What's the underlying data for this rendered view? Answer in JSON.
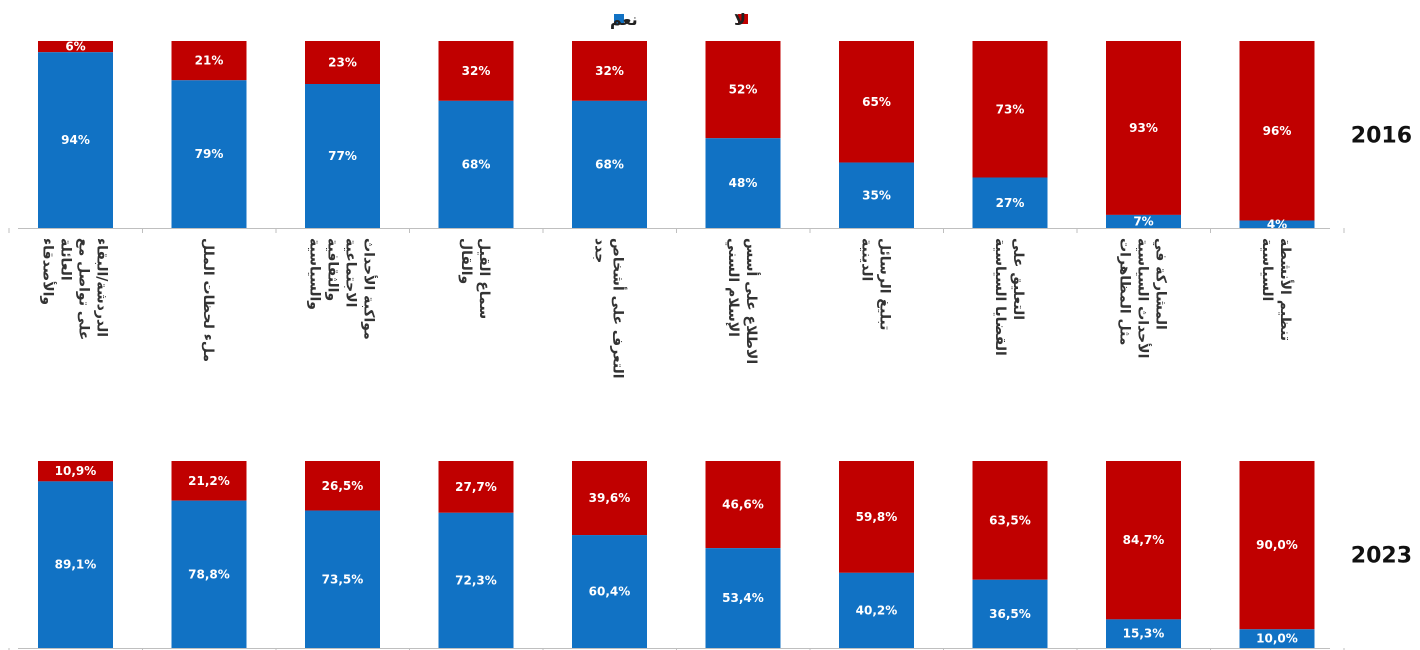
{
  "legend": [
    {
      "label": "نعم",
      "color": "#1172C4"
    },
    {
      "label": "لا",
      "color": "#C00000"
    }
  ],
  "chart_data": {
    "type": "bar",
    "stacked": true,
    "grid": false,
    "legend_position": "top-center",
    "categories": [
      "الدردشة/البقاء على تواصل مع العائلة والأصدقاء",
      "ملء لحظات الملل",
      "مواكبة الأحداث الاجتماعية والثقافية والسياسية",
      "سماع القيل والقال",
      "التعرف على أشخاص جدد",
      "الاطلاع على أسس الإسلام السني",
      "تبليغ الرسائل الدينية",
      "التعليق على القضايا السياسية",
      "المشاركة في الأحداث السياسية مثل المظاهرات",
      "تنظيم الأنشطة السياسية"
    ],
    "panels": [
      {
        "year": "2016",
        "series": [
          {
            "name": "نعم",
            "values": [
              94,
              79,
              77,
              68,
              68,
              48,
              35,
              27,
              7,
              4
            ],
            "labels": [
              "94%",
              "79%",
              "77%",
              "68%",
              "68%",
              "48%",
              "35%",
              "27%",
              "7%",
              "4%"
            ]
          },
          {
            "name": "لا",
            "values": [
              6,
              21,
              23,
              32,
              32,
              52,
              65,
              73,
              93,
              96
            ],
            "labels": [
              "6%",
              "21%",
              "23%",
              "32%",
              "32%",
              "52%",
              "65%",
              "73%",
              "93%",
              "96%"
            ]
          }
        ]
      },
      {
        "year": "2023",
        "series": [
          {
            "name": "نعم",
            "values": [
              89.1,
              78.8,
              73.5,
              72.3,
              60.4,
              53.4,
              40.2,
              36.5,
              15.3,
              10.0
            ],
            "labels": [
              "89,1%",
              "78,8%",
              "73,5%",
              "72,3%",
              "60,4%",
              "53,4%",
              "40,2%",
              "36,5%",
              "15,3%",
              "10,0%"
            ]
          },
          {
            "name": "لا",
            "values": [
              10.9,
              21.2,
              26.5,
              27.7,
              39.6,
              46.6,
              59.8,
              63.5,
              84.7,
              90.0
            ],
            "labels": [
              "10,9%",
              "21,2%",
              "26,5%",
              "27,7%",
              "39,6%",
              "46,6%",
              "59,8%",
              "63,5%",
              "84,7%",
              "90,0%"
            ]
          }
        ]
      }
    ]
  }
}
